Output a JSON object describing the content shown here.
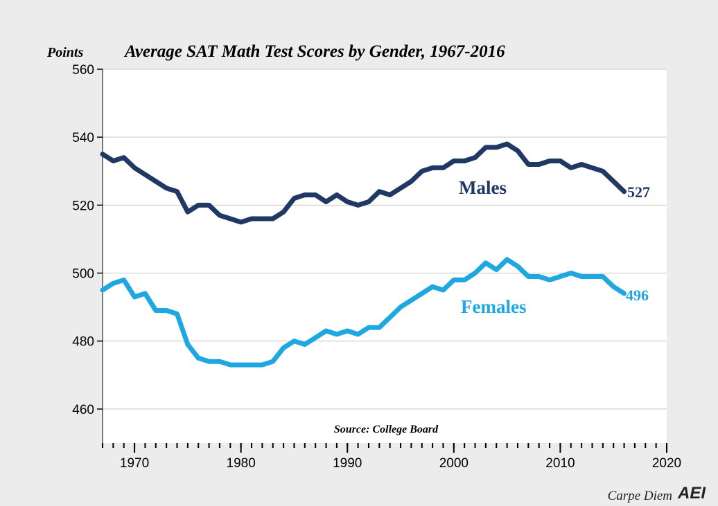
{
  "chart_data": {
    "type": "line",
    "title": "Average SAT Math Test Scores by Gender, 1967-2016",
    "y_label": "Points",
    "source": "Source: College Board",
    "footer": "Carpe Diem",
    "logo": "AEI",
    "annotations": [
      "527",
      "496"
    ],
    "x": [
      1967,
      1968,
      1969,
      1970,
      1971,
      1972,
      1973,
      1974,
      1975,
      1976,
      1977,
      1978,
      1979,
      1980,
      1981,
      1982,
      1983,
      1984,
      1985,
      1986,
      1987,
      1988,
      1989,
      1990,
      1991,
      1992,
      1993,
      1994,
      1995,
      1996,
      1997,
      1998,
      1999,
      2000,
      2001,
      2002,
      2003,
      2004,
      2005,
      2006,
      2007,
      2008,
      2009,
      2010,
      2011,
      2012,
      2013,
      2014,
      2015,
      2016
    ],
    "series": [
      {
        "name": "Males",
        "color": "#1f3864",
        "values": [
          535,
          533,
          534,
          531,
          529,
          527,
          525,
          524,
          518,
          520,
          520,
          517,
          516,
          515,
          516,
          516,
          516,
          518,
          522,
          523,
          523,
          521,
          523,
          521,
          520,
          521,
          524,
          523,
          525,
          527,
          530,
          531,
          531,
          533,
          533,
          534,
          537,
          537,
          538,
          536,
          532,
          532,
          533,
          533,
          531,
          532,
          531,
          530,
          527,
          524
        ]
      },
      {
        "name": "Females",
        "color": "#1ea7e1",
        "values": [
          495,
          497,
          498,
          493,
          494,
          489,
          489,
          488,
          479,
          475,
          474,
          474,
          473,
          473,
          473,
          473,
          474,
          478,
          480,
          479,
          481,
          483,
          482,
          483,
          482,
          484,
          484,
          487,
          490,
          492,
          494,
          496,
          495,
          498,
          498,
          500,
          503,
          501,
          504,
          502,
          499,
          499,
          498,
          499,
          500,
          499,
          499,
          499,
          496,
          494
        ]
      }
    ],
    "xlim": [
      1967,
      2020
    ],
    "ylim": [
      450,
      560
    ],
    "xticks": [
      1970,
      1980,
      1990,
      2000,
      2010,
      2020
    ],
    "xminorticks": [
      1967,
      1968,
      1969,
      1970,
      1971,
      1972,
      1973,
      1974,
      1975,
      1976,
      1977,
      1978,
      1979,
      1980,
      1981,
      1982,
      1983,
      1984,
      1985,
      1986,
      1987,
      1988,
      1989,
      1990,
      1991,
      1992,
      1993,
      1994,
      1995,
      1996,
      1997,
      1998,
      1999,
      2000,
      2001,
      2002,
      2003,
      2004,
      2005,
      2006,
      2007,
      2008,
      2009,
      2010,
      2011,
      2012,
      2013,
      2014,
      2015,
      2016,
      2017,
      2018,
      2019,
      2020
    ],
    "yticks": [
      460,
      480,
      500,
      520,
      540,
      560
    ],
    "grid": true
  }
}
